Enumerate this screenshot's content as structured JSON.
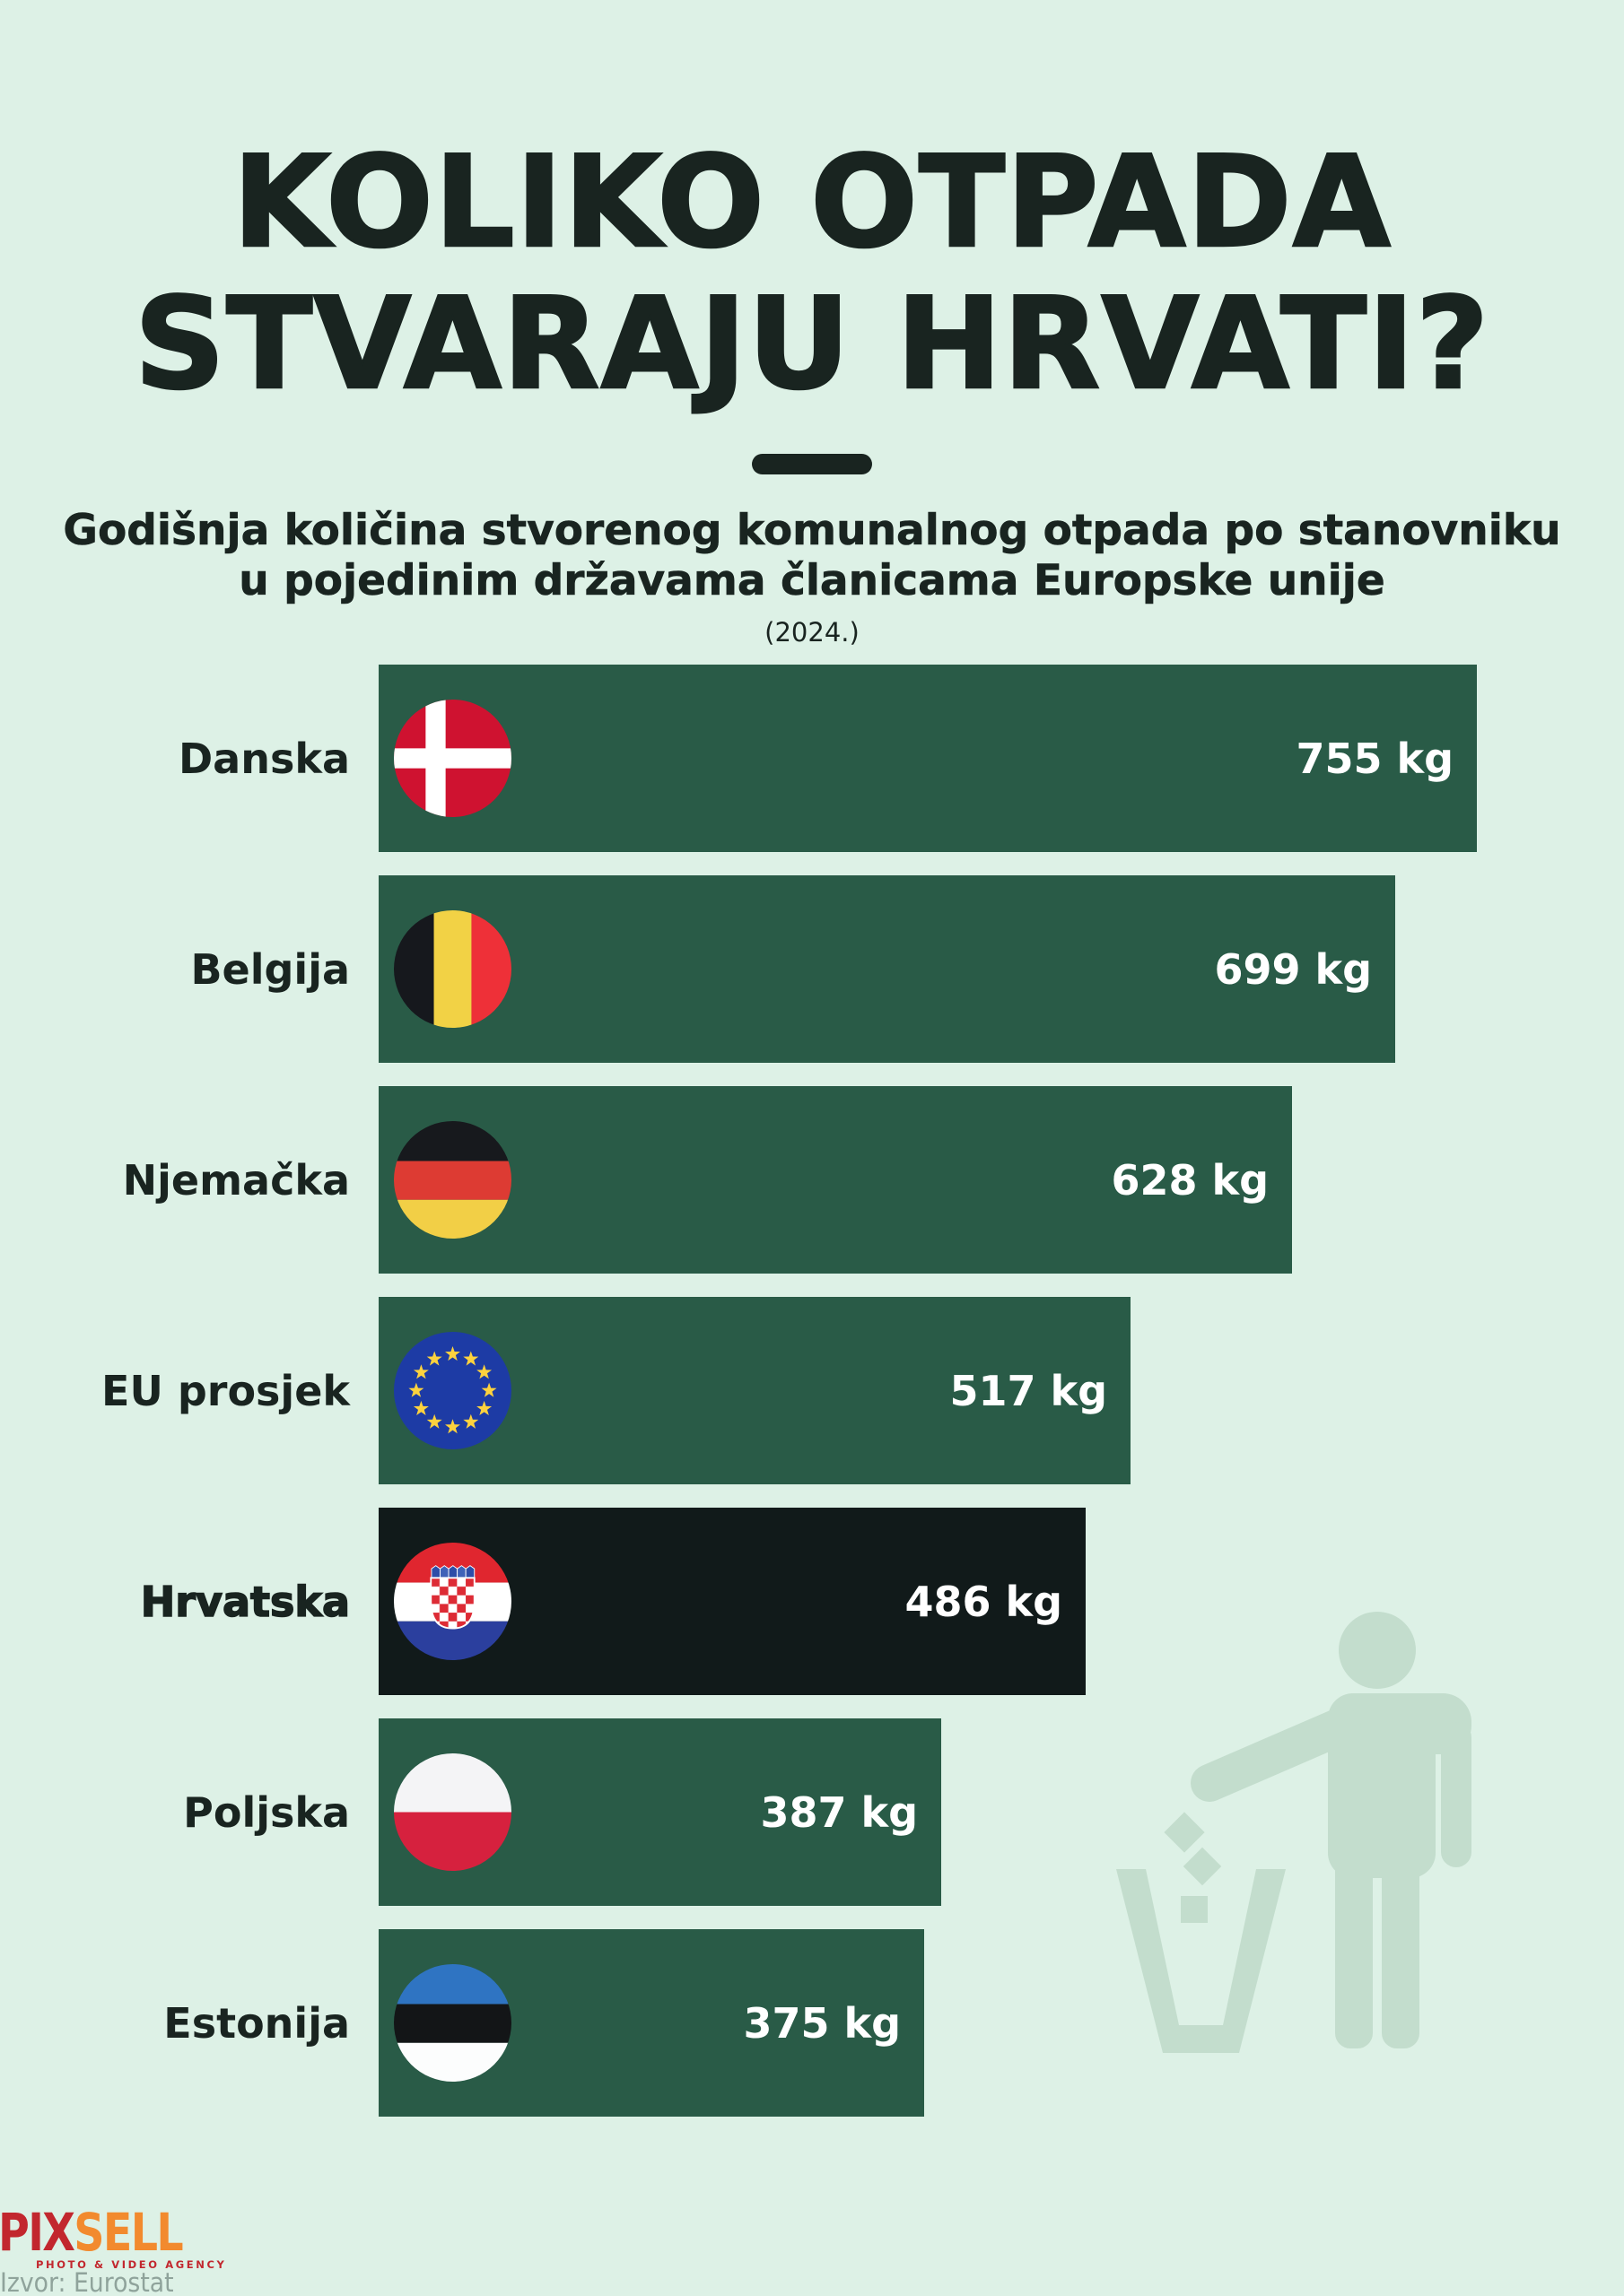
{
  "title": {
    "line1": "KOLIKO OTPADA",
    "line2": "STVARAJU HRVATI?"
  },
  "subtitle": {
    "line1": "Godišnja količina stvorenog komunalnog otpada po stanovniku",
    "line2": "u pojedinim državama članicama Europske unije"
  },
  "year_note": "(2024.)",
  "chart_data": {
    "type": "bar",
    "orientation": "horizontal",
    "title": "Godišnja količina stvorenog komunalnog otpada po stanovniku u pojedinim državama članicama Europske unije (2024.)",
    "unit": "kg",
    "categories": [
      "Danska",
      "Belgija",
      "Njemačka",
      "EU prosjek",
      "Hrvatska",
      "Poljska",
      "Estonija"
    ],
    "values": [
      755,
      699,
      628,
      517,
      486,
      387,
      375
    ],
    "value_labels": [
      "755 kg",
      "699 kg",
      "628 kg",
      "517 kg",
      "486 kg",
      "387 kg",
      "375 kg"
    ],
    "flags": [
      "denmark",
      "belgium",
      "germany",
      "eu",
      "croatia",
      "poland",
      "estonia"
    ],
    "highlight_index": 4,
    "highlight_category": "Hrvatska",
    "xlim": [
      0,
      755
    ],
    "grid": false,
    "legend": "none",
    "bar_color": "#295b47",
    "highlight_bar_color": "#111a1a",
    "value_text_color": "#ffffff"
  },
  "colors": {
    "background": "#ddf1e6",
    "text_dark": "#192420",
    "bar_green": "#295b47",
    "bar_black": "#111a1a",
    "silhouette_green": "#c3ddcd",
    "pixsell_red": "#c2272e",
    "pixsell_orange": "#f28a2e",
    "source_gray": "#8fa39b"
  },
  "footer": {
    "logo_pix": "PIX",
    "logo_sell": "SELL",
    "logo_tagline": "PHOTO & VIDEO AGENCY",
    "source": "Izvor: Eurostat"
  },
  "decor": {
    "illustration": "person-throwing-trash-in-bin"
  }
}
